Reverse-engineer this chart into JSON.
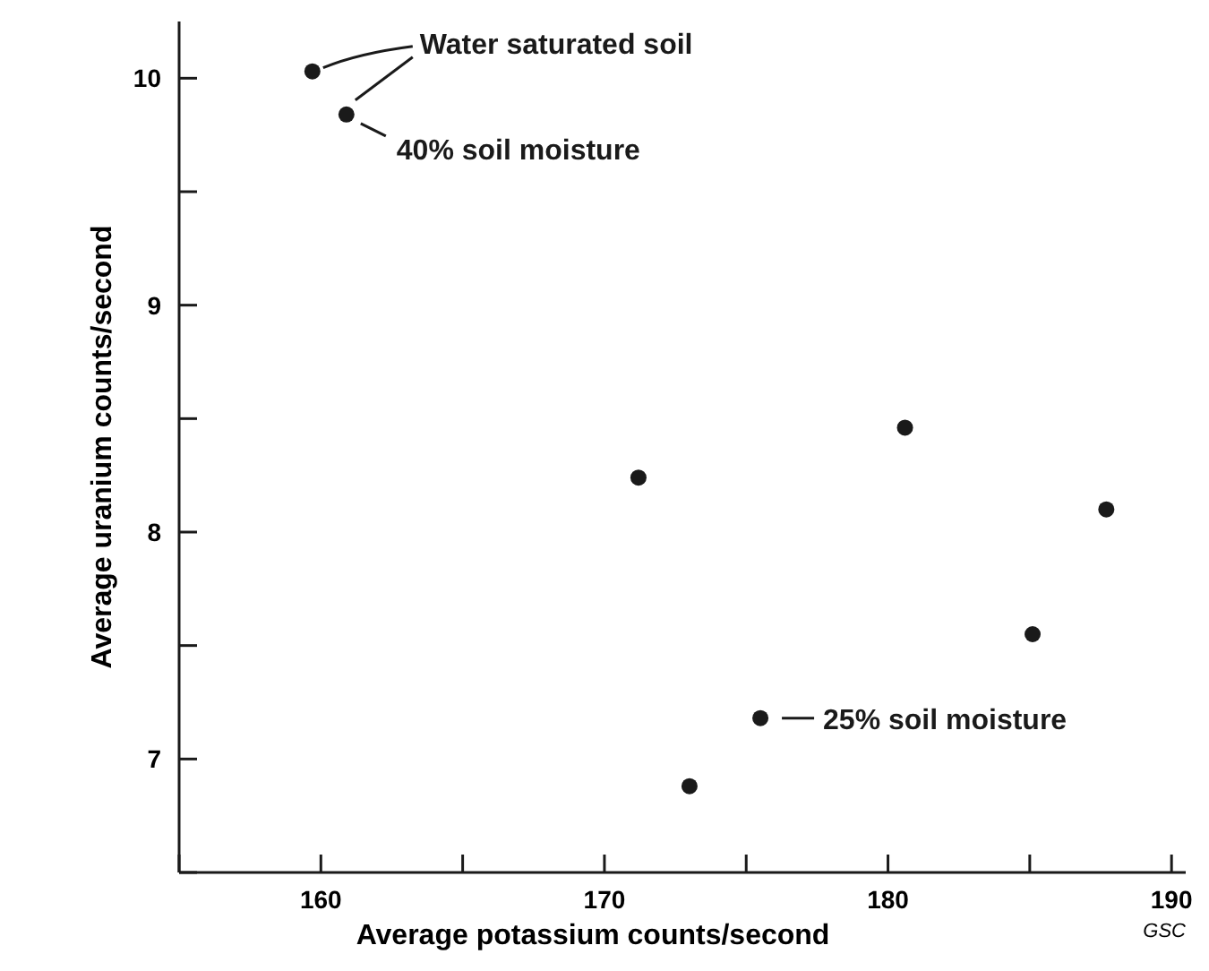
{
  "chart_data": {
    "type": "scatter",
    "xlabel": "Average potassium counts/second",
    "ylabel": "Average uranium counts/second",
    "x": [
      159.7,
      160.9,
      171.2,
      173.0,
      175.5,
      180.6,
      185.1,
      187.7
    ],
    "values": [
      10.03,
      9.84,
      8.24,
      6.88,
      7.18,
      8.46,
      7.55,
      8.1
    ],
    "color": "#1a1a1a",
    "marker": "circle",
    "xlim": [
      155,
      190.5
    ],
    "xticks": [
      {
        "value": 155,
        "label": null
      },
      160,
      {
        "value": 165,
        "label": null
      },
      170,
      {
        "value": 175,
        "label": null
      },
      180,
      {
        "value": 185,
        "label": null
      },
      190
    ],
    "ylim": [
      6.5,
      10.25
    ],
    "yticks": [
      {
        "value": 6.5,
        "label": null
      },
      7,
      {
        "value": 7.5,
        "label": null
      },
      8,
      {
        "value": 8.5,
        "label": null
      },
      9,
      {
        "value": 9.5,
        "label": null
      },
      10
    ],
    "grid": false,
    "annotations": [
      {
        "text": "Water saturated soil",
        "x": 159.7,
        "y": 10.03
      },
      {
        "text": "40% soil moisture",
        "x": 160.9,
        "y": 9.84
      },
      {
        "text": "25% soil moisture",
        "x": 175.5,
        "y": 7.18
      },
      "GSC"
    ]
  }
}
